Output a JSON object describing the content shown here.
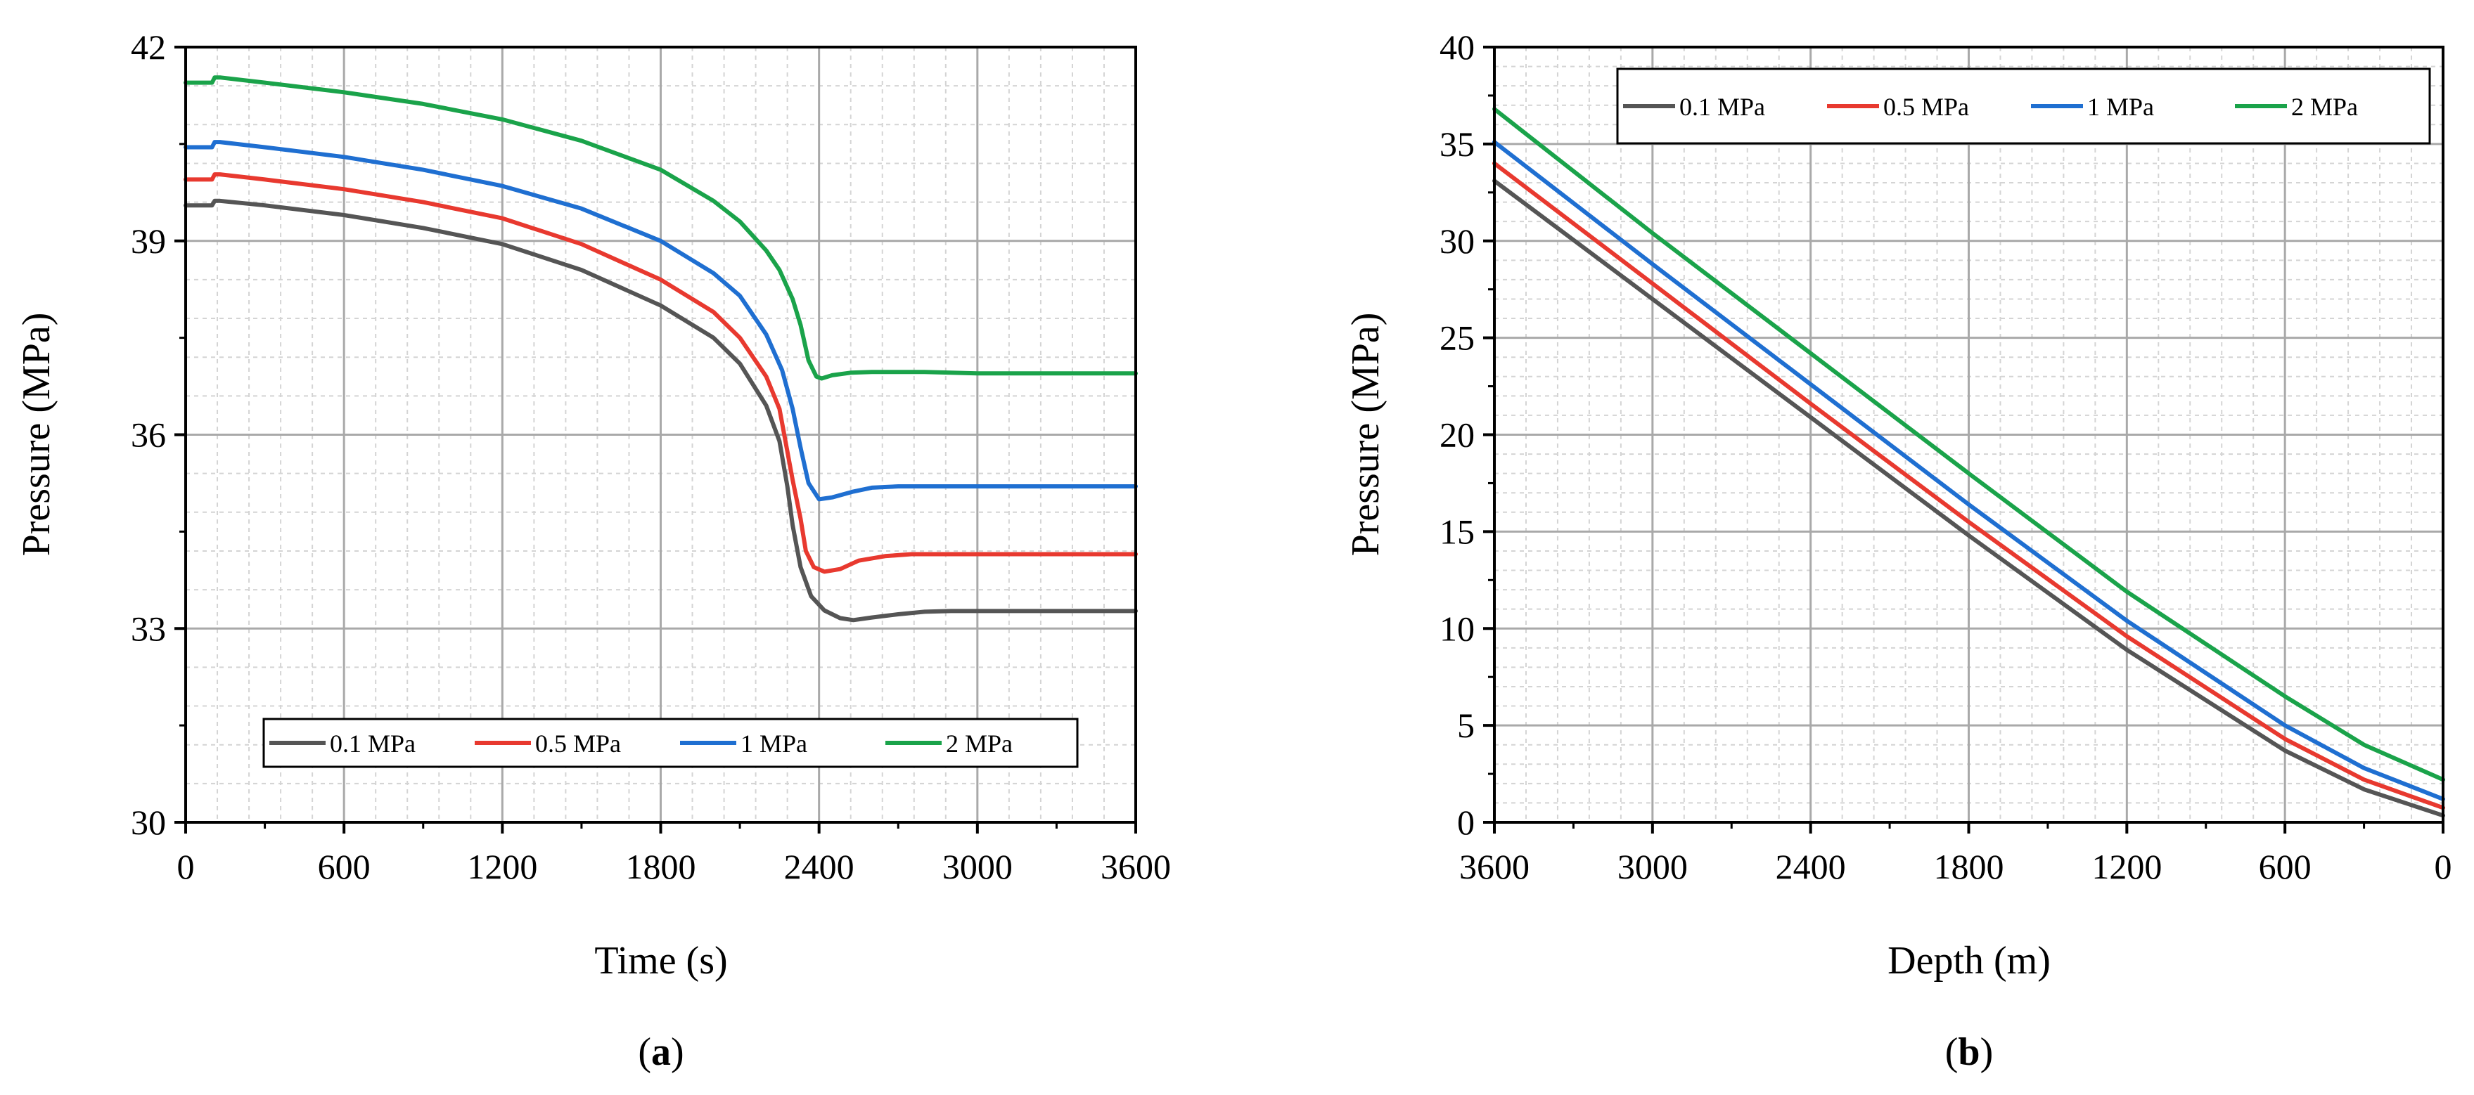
{
  "chart_data": [
    {
      "panel": "a",
      "type": "line",
      "panel_label_open": "(",
      "panel_label_letter": "a",
      "panel_label_close": ")",
      "xlabel": "Time (s)",
      "ylabel": "Pressure (MPa)",
      "xlim": [
        0,
        3600
      ],
      "ylim": [
        30,
        42
      ],
      "xticks": [
        0,
        600,
        1200,
        1800,
        2400,
        3000,
        3600
      ],
      "yticks": [
        30,
        33,
        36,
        39,
        42
      ],
      "legend_position": "bottom-center",
      "grid": true,
      "series": [
        {
          "name": "0.1 MPa",
          "color": "#555555",
          "x": [
            0,
            100,
            110,
            130,
            300,
            600,
            900,
            1200,
            1500,
            1800,
            2000,
            2100,
            2200,
            2250,
            2280,
            2300,
            2330,
            2370,
            2420,
            2480,
            2530,
            2600,
            2700,
            2800,
            2900,
            3000,
            3600
          ],
          "y": [
            39.55,
            39.55,
            39.62,
            39.62,
            39.55,
            39.4,
            39.2,
            38.95,
            38.55,
            38.0,
            37.5,
            37.1,
            36.45,
            35.9,
            35.2,
            34.6,
            33.95,
            33.5,
            33.28,
            33.16,
            33.13,
            33.17,
            33.22,
            33.26,
            33.27,
            33.27,
            33.27
          ]
        },
        {
          "name": "0.5 MPa",
          "color": "#e8392f",
          "x": [
            0,
            100,
            110,
            130,
            300,
            600,
            900,
            1200,
            1500,
            1800,
            2000,
            2100,
            2200,
            2250,
            2300,
            2330,
            2350,
            2380,
            2420,
            2480,
            2550,
            2650,
            2750,
            2900,
            3000,
            3600
          ],
          "y": [
            39.95,
            39.95,
            40.03,
            40.03,
            39.95,
            39.8,
            39.6,
            39.35,
            38.95,
            38.4,
            37.9,
            37.5,
            36.9,
            36.4,
            35.3,
            34.7,
            34.2,
            33.95,
            33.88,
            33.92,
            34.05,
            34.12,
            34.15,
            34.15,
            34.15,
            34.15
          ]
        },
        {
          "name": "1 MPa",
          "color": "#1f6fd1",
          "x": [
            0,
            100,
            110,
            130,
            300,
            600,
            900,
            1200,
            1500,
            1800,
            2000,
            2100,
            2200,
            2260,
            2300,
            2330,
            2360,
            2400,
            2450,
            2530,
            2600,
            2700,
            2800,
            3000,
            3600
          ],
          "y": [
            40.45,
            40.45,
            40.53,
            40.53,
            40.45,
            40.3,
            40.1,
            39.85,
            39.5,
            39.0,
            38.5,
            38.15,
            37.55,
            37.0,
            36.4,
            35.8,
            35.25,
            35.0,
            35.03,
            35.12,
            35.18,
            35.2,
            35.2,
            35.2,
            35.2
          ]
        },
        {
          "name": "2 MPa",
          "color": "#1aa34a",
          "x": [
            0,
            100,
            110,
            130,
            300,
            600,
            900,
            1200,
            1500,
            1800,
            2000,
            2100,
            2200,
            2250,
            2300,
            2330,
            2360,
            2390,
            2410,
            2450,
            2520,
            2600,
            2800,
            3000,
            3600
          ],
          "y": [
            41.45,
            41.45,
            41.53,
            41.53,
            41.45,
            41.3,
            41.12,
            40.88,
            40.55,
            40.1,
            39.62,
            39.3,
            38.85,
            38.55,
            38.1,
            37.7,
            37.15,
            36.9,
            36.87,
            36.92,
            36.96,
            36.97,
            36.97,
            36.95,
            36.95
          ]
        }
      ]
    },
    {
      "panel": "b",
      "type": "line",
      "panel_label_open": "(",
      "panel_label_letter": "b",
      "panel_label_close": ")",
      "xlabel": "Depth (m)",
      "ylabel": "Pressure (MPa)",
      "xlim": [
        3600,
        0
      ],
      "x_reversed": true,
      "ylim": [
        0,
        40
      ],
      "xticks": [
        3600,
        3000,
        2400,
        1800,
        1200,
        600,
        0
      ],
      "yticks": [
        0,
        5,
        10,
        15,
        20,
        25,
        30,
        35,
        40
      ],
      "legend_position": "top",
      "grid": true,
      "series": [
        {
          "name": "0.1 MPa",
          "color": "#555555",
          "x": [
            3600,
            3000,
            2400,
            1800,
            1200,
            600,
            300,
            0
          ],
          "y": [
            33.1,
            27.0,
            20.9,
            14.8,
            8.9,
            3.7,
            1.7,
            0.35
          ]
        },
        {
          "name": "0.5 MPa",
          "color": "#e8392f",
          "x": [
            3600,
            3000,
            2400,
            1800,
            1200,
            600,
            300,
            0
          ],
          "y": [
            34.0,
            27.8,
            21.6,
            15.5,
            9.6,
            4.3,
            2.2,
            0.75
          ]
        },
        {
          "name": "1 MPa",
          "color": "#1f6fd1",
          "x": [
            3600,
            3000,
            2400,
            1800,
            1200,
            600,
            300,
            0
          ],
          "y": [
            35.1,
            28.8,
            22.6,
            16.4,
            10.4,
            5.0,
            2.8,
            1.2
          ]
        },
        {
          "name": "2 MPa",
          "color": "#1aa34a",
          "x": [
            3600,
            3000,
            2400,
            1800,
            1200,
            600,
            300,
            0
          ],
          "y": [
            36.8,
            30.4,
            24.2,
            18.0,
            11.9,
            6.5,
            4.0,
            2.2
          ]
        }
      ]
    }
  ]
}
